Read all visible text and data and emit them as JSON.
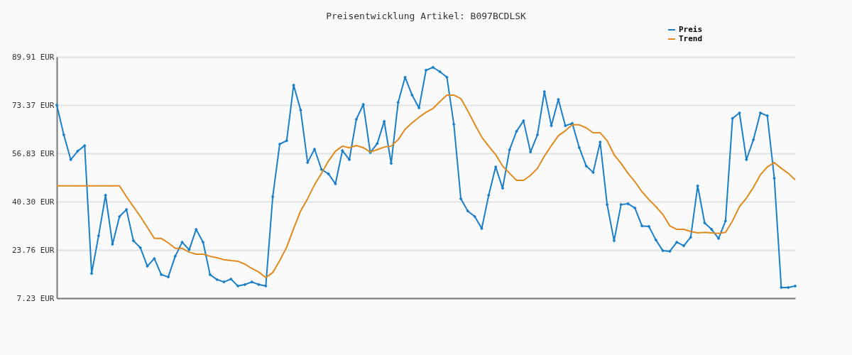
{
  "chart_data": {
    "type": "line",
    "title": "Preisentwicklung Artikel: B097BCDLSK",
    "categories": [
      null,
      null,
      null,
      null,
      null,
      null,
      null,
      null,
      null,
      null,
      null,
      null,
      null,
      null,
      null,
      null,
      null,
      null,
      null,
      null,
      null,
      null,
      null,
      null,
      null,
      null,
      null,
      null,
      null,
      null,
      null,
      null,
      null,
      null,
      null,
      null,
      null,
      null,
      null,
      null,
      null,
      null,
      null,
      null,
      null,
      null,
      null,
      null,
      null,
      null,
      null,
      null,
      null,
      null,
      null,
      null,
      null,
      null,
      null,
      null,
      null,
      null,
      null,
      null,
      null,
      null,
      null,
      null,
      null,
      null,
      null,
      null,
      null,
      null,
      null,
      null,
      null,
      null,
      null,
      null,
      null,
      null,
      null,
      null,
      null,
      null,
      null,
      null,
      null,
      null,
      null,
      null,
      null,
      null,
      null,
      null,
      null,
      null,
      null,
      null,
      null,
      null,
      null,
      null,
      null,
      null,
      null
    ],
    "series": [
      {
        "name": "Preis",
        "color": "#1a7fc9",
        "marker": "diamond",
        "values": [
          73.4,
          63.2,
          54.7,
          57.6,
          59.5,
          15.7,
          28.6,
          42.5,
          25.7,
          35.2,
          37.6,
          26.9,
          24.5,
          18.2,
          20.8,
          15.3,
          14.5,
          21.6,
          26.4,
          23.8,
          30.8,
          26.4,
          15.3,
          13.6,
          12.8,
          13.8,
          11.4,
          11.9,
          12.8,
          11.9,
          11.4,
          42.0,
          60.0,
          61.2,
          80.2,
          71.7,
          53.7,
          58.3,
          51.3,
          49.8,
          46.4,
          57.8,
          54.7,
          68.5,
          73.6,
          57.1,
          60.2,
          67.8,
          53.4,
          74.3,
          82.9,
          76.8,
          72.4,
          85.3,
          86.3,
          84.8,
          82.9,
          66.8,
          41.3,
          37.1,
          35.2,
          31.1,
          42.5,
          52.2,
          44.9,
          58.1,
          64.4,
          68.0,
          57.3,
          63.2,
          78.0,
          66.3,
          75.3,
          66.3,
          67.1,
          58.8,
          52.5,
          50.3,
          60.7,
          39.3,
          26.9,
          39.3,
          39.6,
          38.1,
          32.0,
          31.8,
          27.2,
          23.5,
          23.3,
          26.4,
          25.2,
          28.1,
          45.7,
          33.0,
          30.8,
          27.7,
          33.7,
          68.8,
          70.7,
          54.7,
          61.5,
          70.7,
          69.7,
          48.3,
          10.9,
          10.9,
          11.4
        ]
      },
      {
        "name": "Trend",
        "color": "#e08a1e",
        "values": [
          45.7,
          45.7,
          45.7,
          45.7,
          45.7,
          45.7,
          45.7,
          45.7,
          45.7,
          45.7,
          42.0,
          38.6,
          35.2,
          31.5,
          27.7,
          27.7,
          26.2,
          24.3,
          24.3,
          23.0,
          22.3,
          22.3,
          21.6,
          21.1,
          20.4,
          20.1,
          19.9,
          18.9,
          17.4,
          16.2,
          14.3,
          16.0,
          20.1,
          24.7,
          31.1,
          37.1,
          41.3,
          46.1,
          50.0,
          54.2,
          57.6,
          59.3,
          58.8,
          59.5,
          58.8,
          57.3,
          58.1,
          59.0,
          59.3,
          61.5,
          65.1,
          67.3,
          69.2,
          70.9,
          72.2,
          74.6,
          76.8,
          76.8,
          75.6,
          71.4,
          66.8,
          62.4,
          59.3,
          56.4,
          52.5,
          50.0,
          47.6,
          47.6,
          49.3,
          51.7,
          55.9,
          59.5,
          62.9,
          64.6,
          66.6,
          66.6,
          65.6,
          63.9,
          63.9,
          61.2,
          56.4,
          53.4,
          50.0,
          47.1,
          43.7,
          41.0,
          38.6,
          35.9,
          32.0,
          30.8,
          30.8,
          30.1,
          29.6,
          29.8,
          29.6,
          29.4,
          29.8,
          33.7,
          38.6,
          41.5,
          45.2,
          49.5,
          52.2,
          53.7,
          51.7,
          50.0,
          47.8
        ]
      }
    ],
    "ylim": [
      7.23,
      89.91
    ],
    "yticks": [
      {
        "value": 7.23,
        "label": "7.23 EUR"
      },
      {
        "value": 23.76,
        "label": "23.76 EUR"
      },
      {
        "value": 40.3,
        "label": "40.30 EUR"
      },
      {
        "value": 56.83,
        "label": "56.83 EUR"
      },
      {
        "value": 73.37,
        "label": "73.37 EUR"
      },
      {
        "value": 89.91,
        "label": "89.91 EUR"
      }
    ],
    "grid": "y",
    "legend": "top right"
  }
}
